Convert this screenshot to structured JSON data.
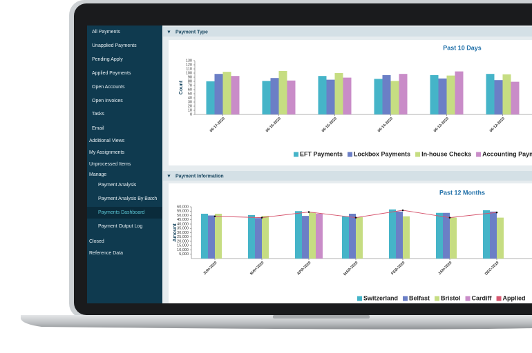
{
  "sidebar": {
    "items": [
      "All Payments",
      "Unapplied Payments",
      "Pending Apply",
      "Applied Payments",
      "Open Accounts",
      "Open Invoices",
      "Tasks",
      "Email",
      "Additional Views",
      "My Assignments",
      "Unprocessed Items",
      "Manage",
      "Payment Analysis",
      "Payment Analysis By Batch",
      "Payments Dashboard",
      "Payment Output Log",
      "Closed",
      "Reference Data"
    ]
  },
  "panels": [
    {
      "title": "Payment Type",
      "chart": {
        "type": "bar",
        "title": "Past 10 Days",
        "y_label": "Count",
        "categories": [
          "06-17-2020",
          "06-16-2020",
          "06-15-2020",
          "06-14-2020",
          "06-13-2020",
          "06-12-2020"
        ],
        "series": [
          {
            "name": "EFT Payments",
            "color": "#45b4c8",
            "values": [
              80,
              81,
              93,
              86,
              95,
              98
            ]
          },
          {
            "name": "Lockbox Payments",
            "color": "#6b7fc6",
            "values": [
              98,
              88,
              84,
              95,
              87,
              83
            ]
          },
          {
            "name": "In-house Checks",
            "color": "#c6dd82",
            "values": [
              103,
              105,
              100,
              81,
              94,
              97
            ]
          },
          {
            "name": "Accounting Payments",
            "color": "#c98cc8",
            "values": [
              93,
              82,
              89,
              98,
              104,
              79
            ]
          }
        ],
        "ylim": [
          0,
          130
        ],
        "yticks": [
          0,
          10,
          20,
          30,
          40,
          50,
          60,
          70,
          80,
          90,
          100,
          110,
          120,
          130
        ]
      }
    },
    {
      "title": "Payment Information",
      "chart": {
        "type": "bar",
        "title": "Past 12 Months",
        "y_label": "Amount",
        "categories": [
          "JUN-2020",
          "MAY-2020",
          "APR-2020",
          "MAR-2020",
          "FEB-2020",
          "JAN-2020",
          "DEC-2019"
        ],
        "series": [
          {
            "name": "Switzerland",
            "color": "#45b4c8",
            "values": [
              52000,
              50500,
              55000,
              49000,
              57000,
              53000,
              56000
            ]
          },
          {
            "name": "Belfast",
            "color": "#6b7fc6",
            "values": [
              50000,
              47000,
              49500,
              52000,
              54500,
              53000,
              54500
            ]
          },
          {
            "name": "Bristol",
            "color": "#c6dd82",
            "values": [
              52000,
              49500,
              53500,
              48000,
              49000,
              47500,
              47500
            ]
          },
          {
            "name": "Cardiff",
            "color": "#c98cc8",
            "values": [
              null,
              null,
              52000,
              null,
              null,
              null,
              null
            ]
          },
          {
            "name": "Applied",
            "color": "#d6576f",
            "type": "line",
            "values": [
              49000,
              47500,
              54000,
              47500,
              56000,
              47500,
              53500
            ]
          }
        ],
        "ylim": [
          0,
          60000
        ],
        "yticks": [
          {
            "value": 5000,
            "label": "5,000"
          },
          {
            "value": 10000,
            "label": "10,000"
          },
          {
            "value": 15000,
            "label": "15,000"
          },
          {
            "value": 20000,
            "label": "20,000"
          },
          {
            "value": 25000,
            "label": "25,000"
          },
          {
            "value": 30000,
            "label": "30,000"
          },
          {
            "value": 35000,
            "label": "35,000"
          },
          {
            "value": 40000,
            "label": "40,000"
          },
          {
            "value": 45000,
            "label": "45,000"
          },
          {
            "value": 50000,
            "label": "50,000"
          },
          {
            "value": 55000,
            "label": "55,000"
          },
          {
            "value": 60000,
            "label": "60,000"
          }
        ]
      }
    }
  ]
}
